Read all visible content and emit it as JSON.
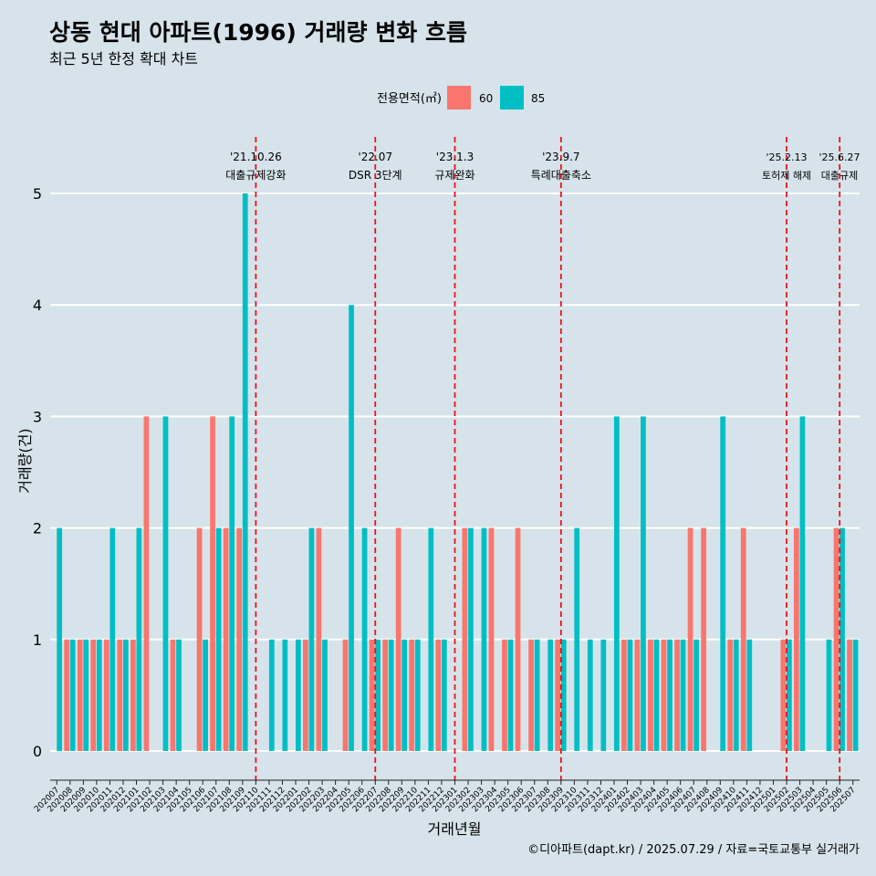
{
  "header": {
    "title": "상동 현대 아파트(1996) 거래량 변화 흐름",
    "subtitle": "최근 5년 한정 확대 차트"
  },
  "caption": "©디아파트(dapt.kr) / 2025.07.29 / 자료=국토교통부 실거래가",
  "colors": {
    "s60": "#F8766D",
    "s85": "#00BFC4",
    "background": "#d6e3ea",
    "event_line": "#e8141a",
    "grid": "#ffffff"
  },
  "chart_data": {
    "type": "bar",
    "xlabel": "거래년월",
    "ylabel": "거래량(건)",
    "ylim": [
      0,
      5
    ],
    "yticks": [
      0,
      1,
      2,
      3,
      4,
      5
    ],
    "legend": {
      "title": "전용면적(㎡)",
      "position": "top"
    },
    "categories": [
      "202007",
      "202008",
      "202009",
      "202010",
      "202011",
      "202012",
      "202101",
      "202102",
      "202103",
      "202104",
      "202105",
      "202106",
      "202107",
      "202108",
      "202109",
      "202110",
      "202111",
      "202112",
      "202201",
      "202202",
      "202203",
      "202204",
      "202205",
      "202206",
      "202207",
      "202208",
      "202209",
      "202210",
      "202211",
      "202212",
      "202301",
      "202302",
      "202303",
      "202304",
      "202305",
      "202306",
      "202307",
      "202308",
      "202309",
      "202310",
      "202311",
      "202312",
      "202401",
      "202402",
      "202403",
      "202404",
      "202405",
      "202406",
      "202407",
      "202408",
      "202409",
      "202410",
      "202411",
      "202412",
      "202501",
      "202502",
      "202503",
      "202504",
      "202505",
      "202506",
      "202507"
    ],
    "series": [
      {
        "name": "60",
        "values": [
          0,
          1,
          1,
          1,
          1,
          1,
          1,
          3,
          0,
          1,
          0,
          2,
          3,
          2,
          2,
          0,
          0,
          0,
          0,
          1,
          2,
          0,
          1,
          0,
          1,
          1,
          2,
          1,
          0,
          1,
          0,
          2,
          0,
          2,
          1,
          2,
          1,
          0,
          1,
          0,
          0,
          0,
          0,
          1,
          1,
          1,
          1,
          1,
          2,
          2,
          0,
          1,
          2,
          0,
          0,
          1,
          2,
          0,
          0,
          2,
          1
        ]
      },
      {
        "name": "85",
        "values": [
          2,
          1,
          1,
          1,
          2,
          1,
          2,
          0,
          3,
          1,
          0,
          1,
          2,
          3,
          5,
          0,
          1,
          1,
          1,
          2,
          1,
          0,
          4,
          2,
          1,
          1,
          1,
          1,
          2,
          1,
          0,
          2,
          2,
          0,
          1,
          0,
          1,
          1,
          1,
          2,
          1,
          1,
          3,
          1,
          3,
          1,
          1,
          1,
          1,
          0,
          3,
          1,
          1,
          0,
          0,
          1,
          3,
          0,
          1,
          2,
          1
        ]
      }
    ],
    "annotations": [
      {
        "date": "'21.10.26",
        "label": "대출규제강화",
        "after": "202110"
      },
      {
        "date": "'22.07",
        "label": "DSR 3단계",
        "after": "202207"
      },
      {
        "date": "'23.1.3",
        "label": "규제완화",
        "after": "202301"
      },
      {
        "date": "'23.9.7",
        "label": "특례대출축소",
        "after": "202309"
      },
      {
        "date": "'25.2.13",
        "label": "토허제 해제",
        "after": "202502"
      },
      {
        "date": "'25.6.27",
        "label": "대출규제",
        "after": "202506"
      }
    ]
  }
}
